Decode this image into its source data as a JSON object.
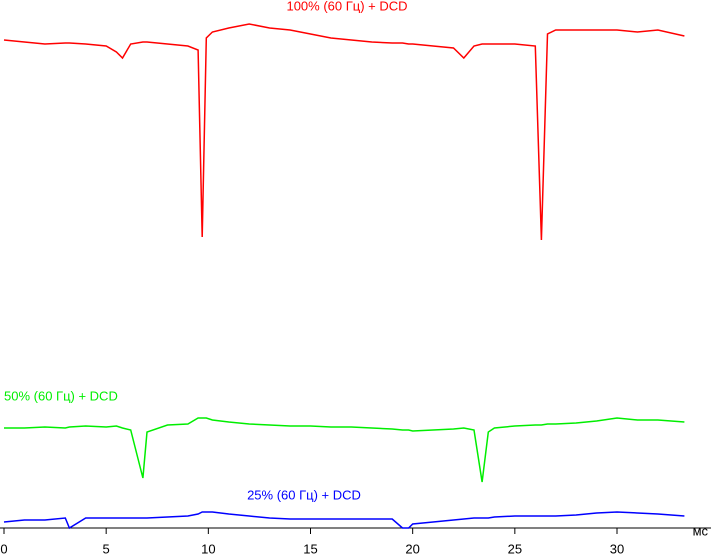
{
  "chart_data": {
    "type": "line",
    "x_label": "мс",
    "xlim": [
      0,
      34.6
    ],
    "xticks": [
      0,
      5,
      10,
      15,
      20,
      25,
      30
    ],
    "ylim": [
      0,
      528
    ],
    "x": [
      0,
      1,
      2,
      3,
      3.2,
      4,
      5,
      5.5,
      5.8,
      6.2,
      6.8,
      7,
      8,
      9,
      9.5,
      9.7,
      9.9,
      10.2,
      11,
      12,
      13,
      14,
      15,
      16,
      17,
      18,
      19,
      19.5,
      19.8,
      20,
      21,
      22,
      22.5,
      23,
      23.4,
      23.7,
      24,
      25,
      26,
      26.3,
      26.6,
      27,
      28,
      29,
      30,
      31,
      32,
      33.3
    ],
    "series": [
      {
        "name": "100% (60 Гц) + DCD",
        "color": "#ff0000",
        "values": [
          488,
          486,
          484,
          485,
          485,
          484,
          482,
          476,
          470,
          484,
          486,
          486,
          484,
          482,
          478,
          291,
          490,
          496,
          500,
          504,
          500,
          498,
          494,
          490,
          488,
          486,
          485,
          485,
          484,
          484,
          482,
          480,
          470,
          482,
          484,
          484,
          484,
          484,
          482,
          288,
          494,
          498,
          498,
          498,
          498,
          496,
          498,
          492
        ]
      },
      {
        "name": "50% (60 Гц) + DCD",
        "color": "#00ee00",
        "values": [
          100,
          100,
          101,
          100,
          101,
          102,
          101,
          102,
          100,
          98,
          50,
          96,
          103,
          104,
          110,
          110,
          110,
          108,
          106,
          104,
          103,
          102,
          102,
          101,
          101,
          100,
          99,
          98,
          98,
          97,
          98,
          99,
          100,
          98,
          46,
          96,
          100,
          102,
          103,
          103,
          104,
          104,
          105,
          107,
          110,
          108,
          108,
          106
        ]
      },
      {
        "name": "25% (60 Гц) + DCD",
        "color": "#0000ff",
        "values": [
          6,
          8,
          8,
          10,
          0,
          10,
          10,
          10,
          10,
          10,
          10,
          10,
          11,
          12,
          14,
          16,
          16,
          16,
          14,
          12,
          10,
          9,
          9,
          9,
          9,
          9,
          9,
          0,
          0,
          4,
          6,
          8,
          9,
          10,
          10,
          10,
          11,
          12,
          12,
          12,
          12,
          12,
          13,
          15,
          16,
          15,
          14,
          12
        ]
      }
    ]
  }
}
